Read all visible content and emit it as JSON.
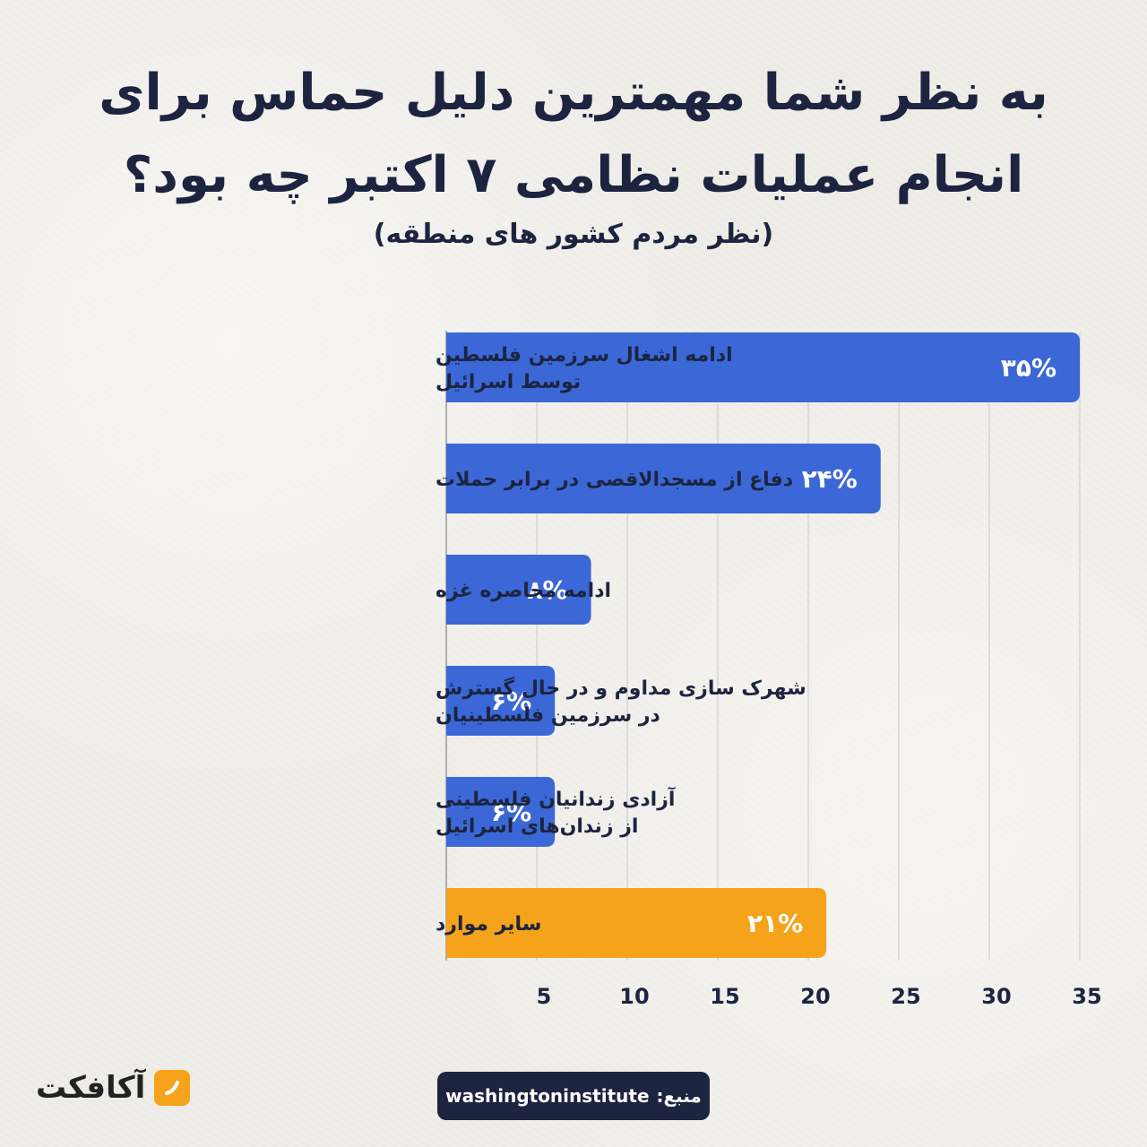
{
  "header": {
    "title_line1": "به نظر شما مهمترین دلیل حماس برای",
    "title_line2": "انجام عملیات نظامی ۷ اکتبر چه بود؟",
    "subtitle": "(نظر مردم کشور های منطقه)"
  },
  "chart_data": {
    "type": "bar",
    "orientation": "horizontal",
    "title": "به نظر شما مهمترین دلیل حماس برای انجام عملیات نظامی ۷ اکتبر چه بود؟",
    "subtitle": "(نظر مردم کشور های منطقه)",
    "categories": [
      [
        "ادامه اشغال سرزمین فلسطین",
        "توسط اسرائیل"
      ],
      [
        "دفاع از مسجدالاقصی در برابر حملات"
      ],
      [
        "ادامه محاصره غزه"
      ],
      [
        "شهرک سازی مداوم و در حال گسترش",
        "در سرزمین فلسطینیان"
      ],
      [
        "آزادی زندانیان فلسطینی",
        "از زندان‌های اسرائیل"
      ],
      [
        "سایر موارد"
      ]
    ],
    "values": [
      35,
      24,
      8,
      6,
      6,
      21
    ],
    "value_labels": [
      "۳۵%",
      "۲۴%",
      "۸%",
      "۶%",
      "۶%",
      "۲۱%"
    ],
    "colors": [
      "#3b68d6",
      "#3b68d6",
      "#3b68d6",
      "#3b68d6",
      "#3b68d6",
      "#f5a31a"
    ],
    "xlim": [
      0,
      35
    ],
    "xticks": [
      5,
      10,
      15,
      20,
      25,
      30,
      35
    ],
    "xtick_labels": [
      "5",
      "10",
      "15",
      "20",
      "25",
      "30",
      "35"
    ],
    "grid": true
  },
  "footer": {
    "logo_text": "آکافکت",
    "source_label": "منبع:",
    "source_value": "washingtoninstitute"
  },
  "colors": {
    "accent_blue": "#3b68d6",
    "accent_orange": "#f5a31a",
    "text_dark": "#1d2440"
  }
}
